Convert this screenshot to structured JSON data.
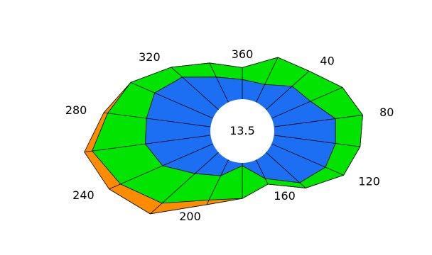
{
  "chart_data": {
    "type": "radar",
    "title": "",
    "center_label": "13.5",
    "angle_unit": "degrees",
    "angle_labels": [
      "360",
      "40",
      "80",
      "120",
      "160",
      "200",
      "240",
      "280",
      "320"
    ],
    "angles": [
      0,
      20,
      40,
      60,
      80,
      100,
      120,
      140,
      160,
      180,
      200,
      220,
      240,
      260,
      280,
      300,
      320,
      340
    ],
    "series": [
      {
        "color": "#ff8c00",
        "values": [
          64,
          79,
          79,
          88,
          93,
          91,
          89,
          75,
          57,
          68,
          79,
          109,
          117,
          122,
          107,
          98,
          84,
          73
        ]
      },
      {
        "color": "#00e400",
        "values": [
          64,
          79,
          79,
          88,
          93,
          91,
          89,
          75,
          57,
          68,
          74,
          95,
          107,
          116,
          104,
          98,
          84,
          73
        ]
      },
      {
        "color": "#1c6ef2",
        "values": [
          52,
          50,
          59,
          60,
          72,
          72,
          73,
          68,
          51,
          35,
          48,
          56,
          70,
          75,
          74,
          77,
          71,
          58
        ]
      }
    ],
    "grid": "radial",
    "legend": "none"
  }
}
